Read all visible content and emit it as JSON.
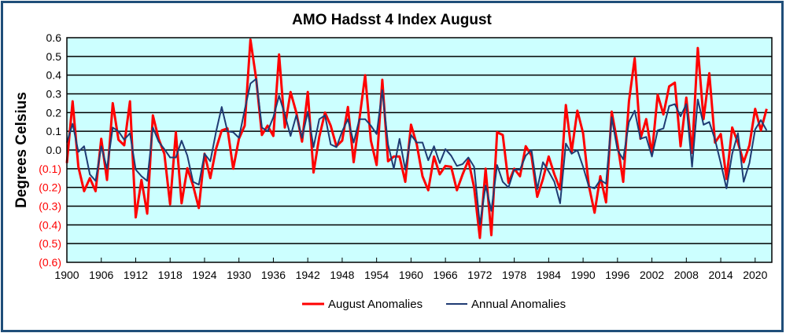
{
  "chart_data": {
    "type": "line",
    "title": "AMO Hadsst 4 Index August",
    "xlabel": "",
    "ylabel": "Degrees Celsius",
    "xlim": [
      1900,
      2022
    ],
    "ylim": [
      -0.6,
      0.6
    ],
    "grid": "horizontal",
    "plot_background": "#CCFFFF",
    "legend_position": "bottom-center",
    "x_ticks": [
      "1900",
      "1906",
      "1912",
      "1918",
      "1924",
      "1930",
      "1936",
      "1942",
      "1948",
      "1954",
      "1960",
      "1966",
      "1972",
      "1978",
      "1984",
      "1990",
      "1996",
      "2002",
      "2008",
      "2014",
      "2020"
    ],
    "y_ticks": [
      {
        "value": 0.6,
        "label": "0.6",
        "color": "#000000"
      },
      {
        "value": 0.5,
        "label": "0.5",
        "color": "#000000"
      },
      {
        "value": 0.4,
        "label": "0.4",
        "color": "#000000"
      },
      {
        "value": 0.3,
        "label": "0.3",
        "color": "#000000"
      },
      {
        "value": 0.2,
        "label": "0.2",
        "color": "#000000"
      },
      {
        "value": 0.1,
        "label": "0.1",
        "color": "#000000"
      },
      {
        "value": 0.0,
        "label": "0.0",
        "color": "#000000"
      },
      {
        "value": -0.1,
        "label": "(0.1)",
        "color": "#FF0000"
      },
      {
        "value": -0.2,
        "label": "(0.2)",
        "color": "#FF0000"
      },
      {
        "value": -0.3,
        "label": "(0.3)",
        "color": "#FF0000"
      },
      {
        "value": -0.4,
        "label": "(0.4)",
        "color": "#FF0000"
      },
      {
        "value": -0.5,
        "label": "(0.5)",
        "color": "#FF0000"
      },
      {
        "value": -0.6,
        "label": "(0.6)",
        "color": "#FF0000"
      }
    ],
    "x_start": 1900,
    "series": [
      {
        "name": "August Anomalies",
        "color": "#FF0000",
        "values": [
          -0.07,
          0.26,
          -0.09,
          -0.22,
          -0.15,
          -0.22,
          0.06,
          -0.16,
          0.25,
          0.055,
          0.025,
          0.26,
          -0.36,
          -0.16,
          -0.34,
          0.185,
          0.06,
          -0.02,
          -0.29,
          0.095,
          -0.285,
          -0.097,
          -0.19,
          -0.31,
          -0.02,
          -0.15,
          0.005,
          0.105,
          0.115,
          -0.1,
          0.06,
          0.13,
          0.59,
          0.38,
          0.08,
          0.13,
          0.075,
          0.51,
          0.12,
          0.31,
          0.2,
          0.045,
          0.31,
          -0.12,
          0.07,
          0.2,
          0.13,
          0.02,
          0.05,
          0.23,
          -0.065,
          0.165,
          0.4,
          0.05,
          -0.08,
          0.375,
          -0.06,
          -0.035,
          -0.035,
          -0.17,
          0.135,
          0.03,
          -0.14,
          -0.215,
          -0.035,
          -0.13,
          -0.085,
          -0.09,
          -0.215,
          -0.13,
          -0.055,
          -0.2,
          -0.47,
          -0.1,
          -0.455,
          0.095,
          0.08,
          -0.175,
          -0.1,
          -0.14,
          0.02,
          -0.03,
          -0.25,
          -0.155,
          -0.035,
          -0.13,
          -0.21,
          0.24,
          -0.01,
          0.21,
          0.09,
          -0.19,
          -0.335,
          -0.14,
          -0.28,
          0.205,
          0.035,
          -0.17,
          0.26,
          0.49,
          0.06,
          0.165,
          -0.02,
          0.295,
          0.19,
          0.34,
          0.36,
          0.02,
          0.28,
          -0.015,
          0.545,
          0.165,
          0.41,
          0.04,
          0.085,
          -0.155,
          0.12,
          0.04,
          -0.065,
          0.025,
          0.22,
          0.105,
          0.22
        ]
      },
      {
        "name": "Annual Anomalies",
        "color": "#1F3B73",
        "values": [
          0.04,
          0.14,
          -0.01,
          0.02,
          -0.13,
          -0.165,
          0.02,
          -0.1,
          0.12,
          0.1,
          0.055,
          0.09,
          -0.105,
          -0.14,
          -0.165,
          0.12,
          0.045,
          0.005,
          -0.04,
          -0.04,
          0.05,
          -0.03,
          -0.17,
          -0.185,
          -0.02,
          -0.06,
          0.095,
          0.23,
          0.1,
          0.095,
          0.065,
          0.215,
          0.355,
          0.38,
          0.12,
          0.1,
          0.175,
          0.29,
          0.19,
          0.075,
          0.185,
          0.065,
          0.205,
          0.015,
          0.165,
          0.185,
          0.03,
          0.015,
          0.1,
          0.165,
          0.04,
          0.165,
          0.165,
          0.13,
          0.085,
          0.32,
          0.03,
          -0.1,
          0.06,
          -0.105,
          0.08,
          0.04,
          0.04,
          -0.055,
          0.02,
          -0.07,
          0.005,
          -0.03,
          -0.085,
          -0.075,
          -0.04,
          -0.09,
          -0.4,
          -0.19,
          -0.325,
          -0.08,
          -0.17,
          -0.2,
          -0.105,
          -0.105,
          -0.03,
          0.0,
          -0.21,
          -0.065,
          -0.115,
          -0.17,
          -0.285,
          0.035,
          -0.02,
          0.0,
          -0.09,
          -0.195,
          -0.205,
          -0.16,
          -0.18,
          0.175,
          0.0,
          -0.05,
          0.15,
          0.21,
          0.06,
          0.07,
          -0.035,
          0.105,
          0.115,
          0.235,
          0.245,
          0.18,
          0.245,
          -0.09,
          0.27,
          0.135,
          0.15,
          0.055,
          -0.07,
          -0.205,
          -0.02,
          0.09,
          -0.17,
          -0.07,
          0.11,
          0.16,
          0.105
        ]
      }
    ]
  }
}
